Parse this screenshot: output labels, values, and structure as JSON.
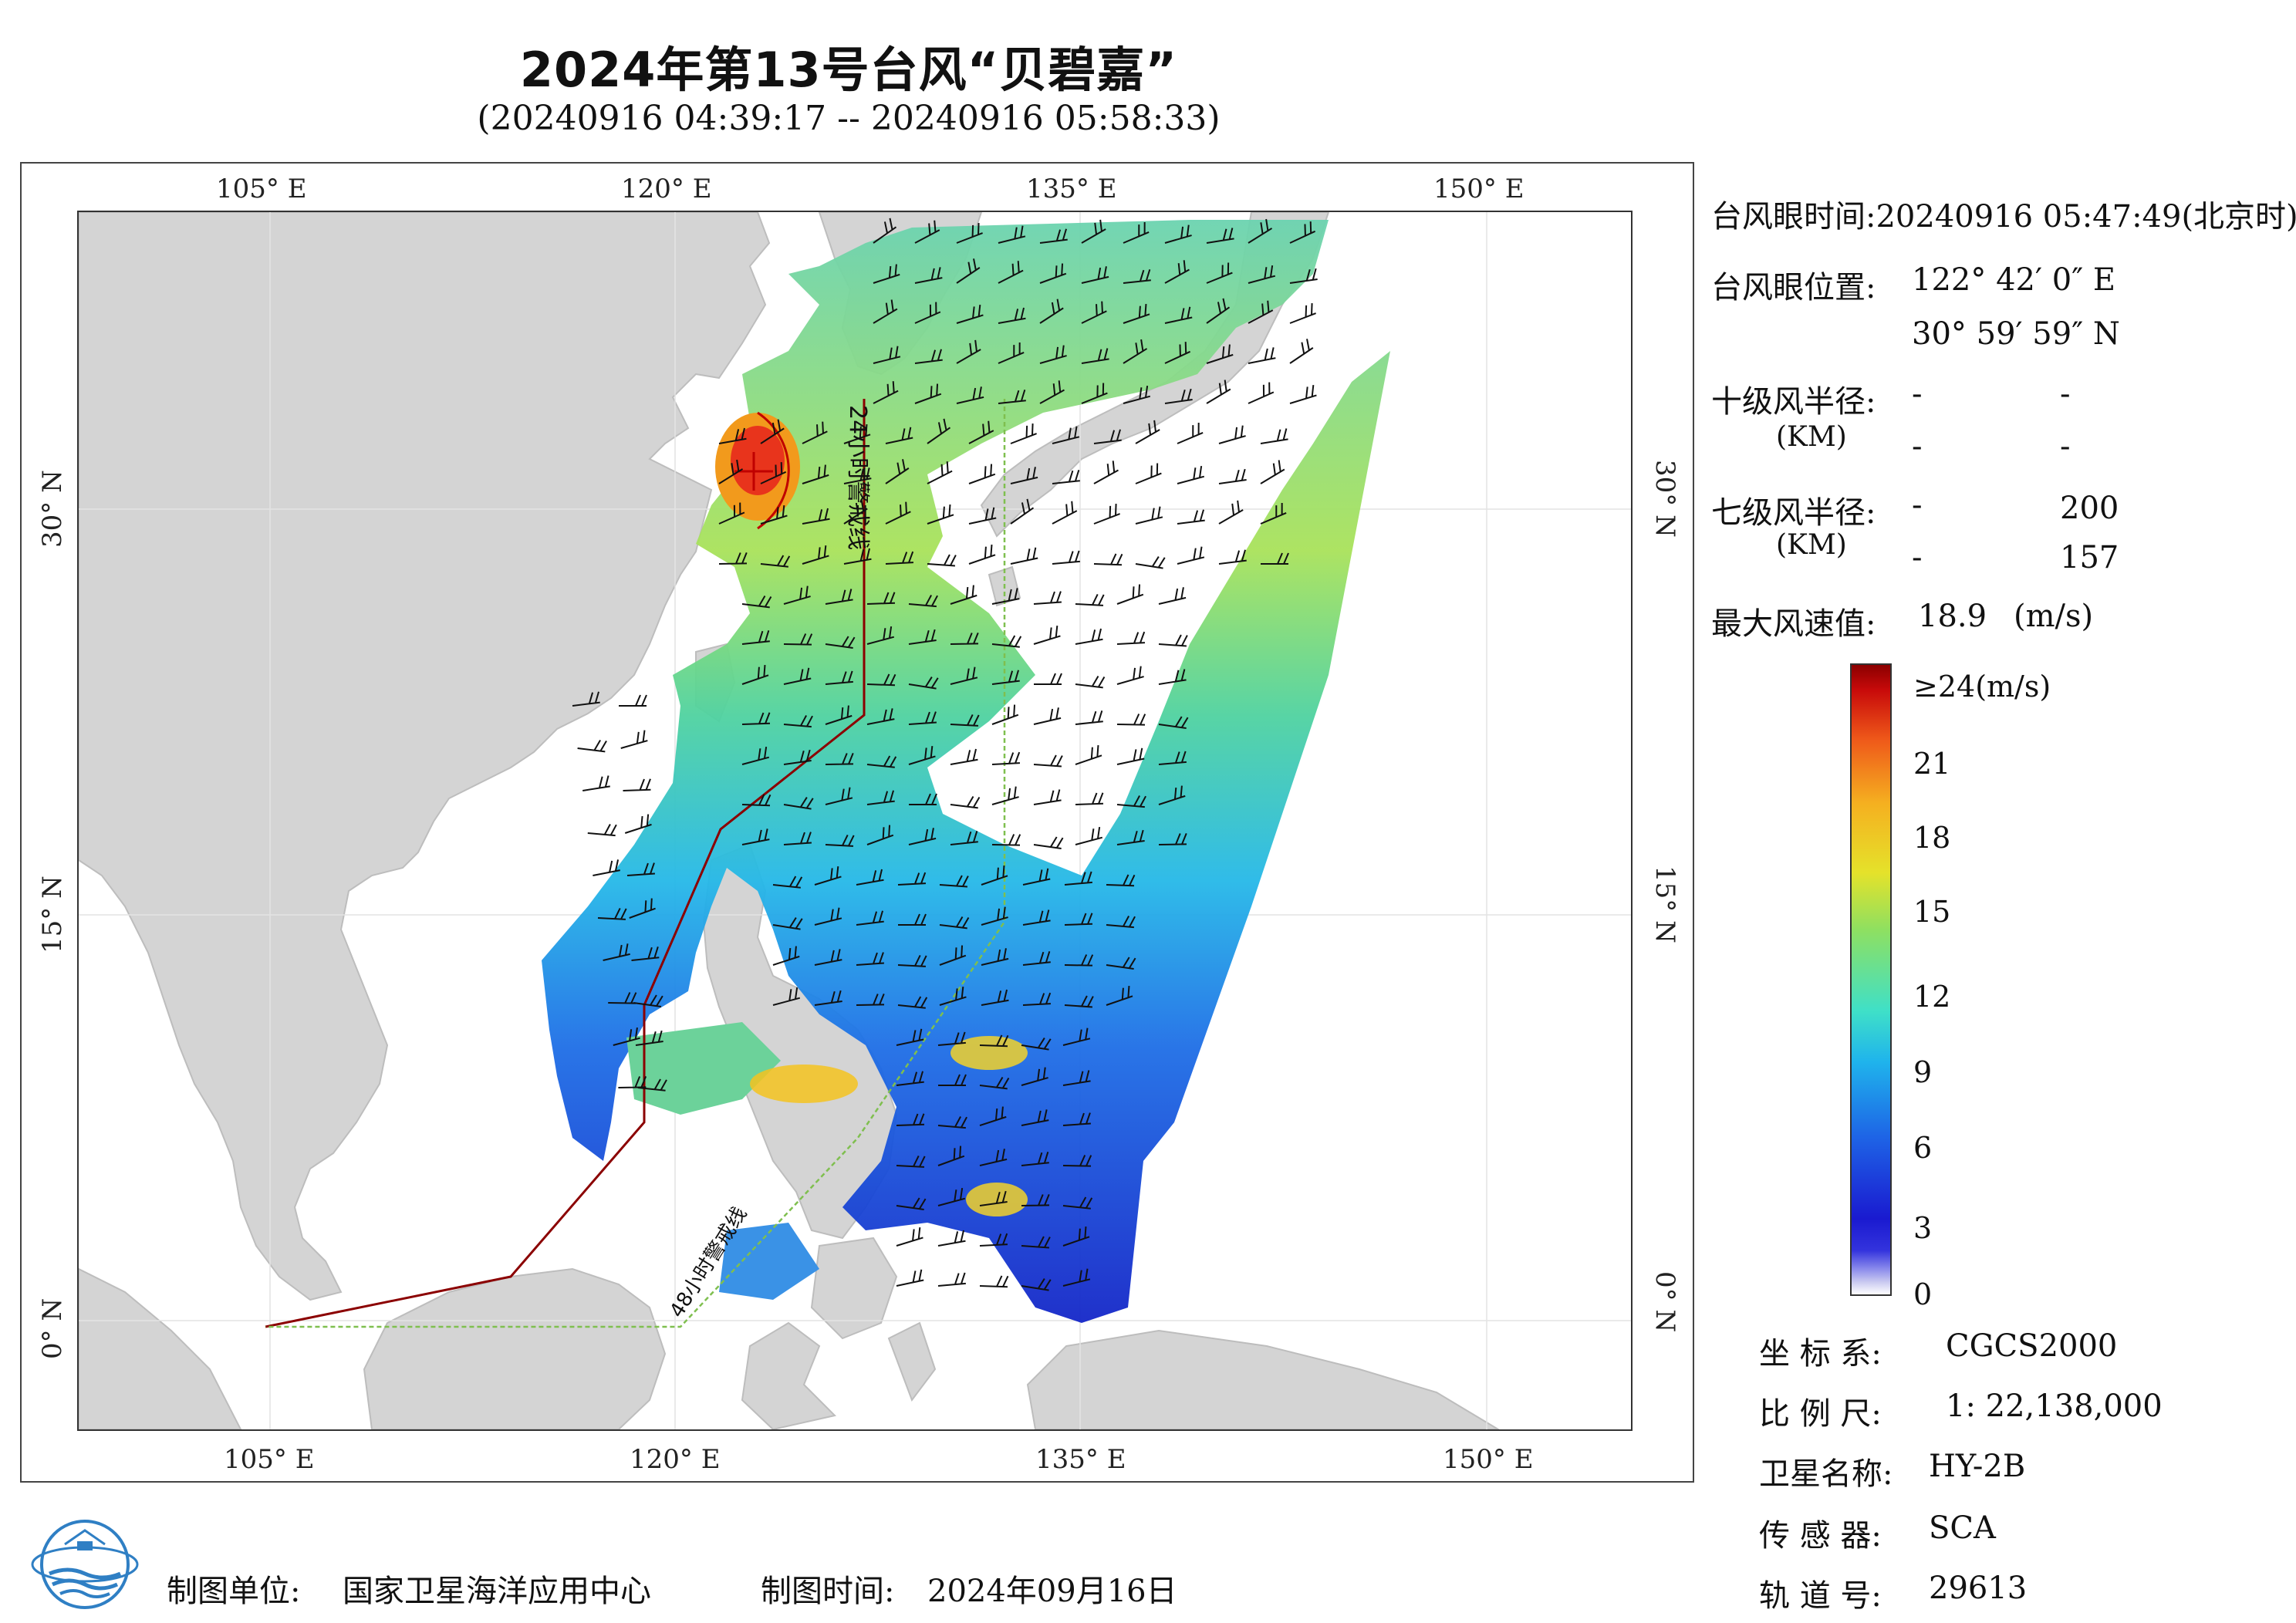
{
  "title": "2024年第13号台风“贝碧嘉”",
  "subtitle": "(20240916 04:39:17 -- 20240916 05:58:33)",
  "axes": {
    "lon_ticks": [
      "105° E",
      "120° E",
      "135° E",
      "150° E"
    ],
    "lat_ticks": [
      "30° N",
      "15° N",
      "0° N"
    ]
  },
  "map": {
    "extent": {
      "lon_min": 98,
      "lon_max": 155,
      "lat_min": -4,
      "lat_max": 41
    },
    "warning_24h_label": "24小时警戒线",
    "warning_48h_label": "48小时警戒线",
    "typhoon_eye": {
      "lon": 122.7,
      "lat": 31.0
    },
    "colors": {
      "land": "#d4d4d4",
      "sea": "#ffffff",
      "line24": "#8b0000",
      "line48": "#7fbf4f"
    }
  },
  "info": {
    "eye_time_label": "台风眼时间:",
    "eye_time_value": "20240916 05:47:49(北京时)",
    "eye_pos_label": "台风眼位置:",
    "eye_lon": "122° 42′ 0″ E",
    "eye_lat": "30° 59′ 59″ N",
    "r10_label": "十级风半径:",
    "r10_unit": "(KM)",
    "r10_v1": "-",
    "r10_v2": "-",
    "r10_v3": "-",
    "r10_v4": "-",
    "r7_label": "七级风半径:",
    "r7_unit": "(KM)",
    "r7_v1": "-",
    "r7_v2": "200",
    "r7_v3": "-",
    "r7_v4": "157",
    "max_wind_label": "最大风速值:",
    "max_wind_value": "18.9",
    "max_wind_unit": "(m/s)"
  },
  "colorbar": {
    "labels": [
      "≥24(m/s)",
      "21",
      "18",
      "15",
      "12",
      "9",
      "6",
      "3",
      "0"
    ]
  },
  "meta": [
    {
      "label": "坐 标 系:",
      "value": "CGCS2000"
    },
    {
      "label": "比 例 尺:",
      "value": "1: 22,138,000"
    },
    {
      "label": "卫星名称:",
      "value": "HY-2B"
    },
    {
      "label": "传 感 器:",
      "value": "SCA"
    },
    {
      "label": "轨 道 号:",
      "value": "29613"
    }
  ],
  "footer": {
    "unit_label": "制图单位:",
    "unit_value": "国家卫星海洋应用中心",
    "time_label": "制图时间:",
    "time_value": "2024年09月16日"
  }
}
